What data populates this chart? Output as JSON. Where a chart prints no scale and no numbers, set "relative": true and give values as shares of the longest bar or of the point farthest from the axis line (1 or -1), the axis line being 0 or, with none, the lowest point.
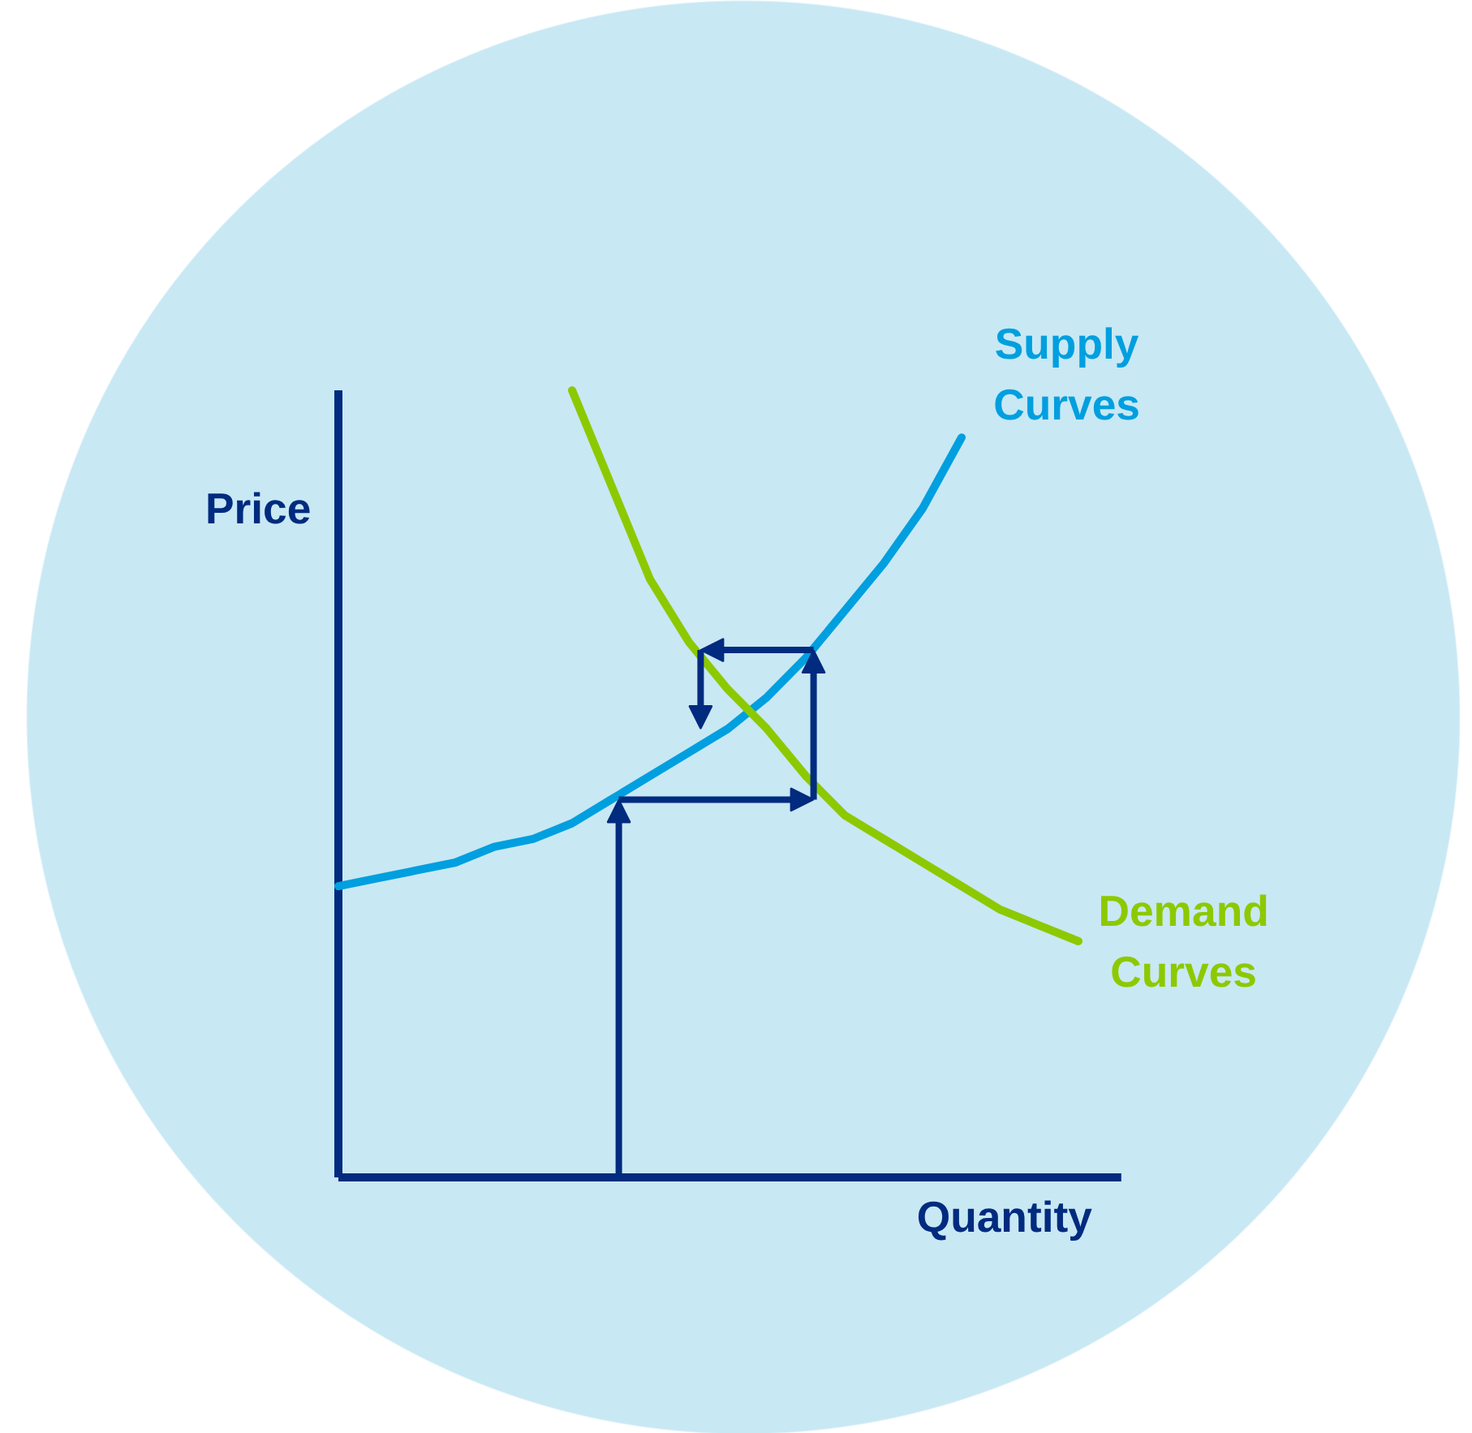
{
  "chart_data": {
    "type": "line",
    "relative": true,
    "xlabel": "Quantity",
    "ylabel": "Price",
    "grid": false,
    "marker": "none",
    "line_style": "solid",
    "categories": [
      null,
      null,
      null,
      null,
      null,
      null,
      null,
      null,
      null,
      null,
      null,
      null,
      null,
      null,
      null,
      null,
      null,
      null,
      null,
      null,
      null
    ],
    "series": [
      {
        "name": "Supply\nCurves",
        "color": "#009fdf",
        "values": [
          0.37,
          0.38,
          0.39,
          0.4,
          0.42,
          0.43,
          0.45,
          0.48,
          0.51,
          0.54,
          0.57,
          0.61,
          0.66,
          0.72,
          0.78,
          0.85,
          0.94,
          null,
          null,
          null,
          null
        ]
      },
      {
        "name": "Demand\nCurves",
        "color": "#8dc900",
        "values": [
          null,
          null,
          null,
          null,
          null,
          null,
          1.0,
          0.88,
          0.76,
          0.68,
          0.62,
          0.57,
          0.51,
          0.46,
          0.43,
          0.4,
          0.37,
          0.34,
          0.32,
          0.3,
          null
        ]
      }
    ]
  }
}
